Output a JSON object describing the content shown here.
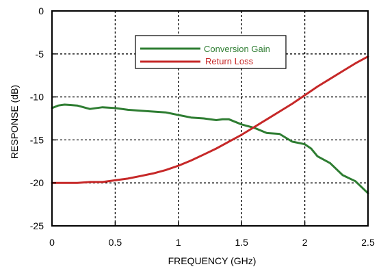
{
  "chart_data": {
    "type": "line",
    "xlabel": "FREQUENCY (GHz)",
    "ylabel": "RESPONSE (dB)",
    "xlim": [
      0,
      2.5
    ],
    "ylim": [
      -25,
      0
    ],
    "x_ticks": [
      0,
      0.5,
      1,
      1.5,
      2,
      2.5
    ],
    "x_tick_labels": [
      "0",
      "0.5",
      "1",
      "1.5",
      "2",
      "2.5"
    ],
    "y_ticks": [
      0,
      -5,
      -10,
      -15,
      -20,
      -25
    ],
    "y_tick_labels": [
      "0",
      "-5",
      "-10",
      "-15",
      "-20",
      "-25"
    ],
    "grid": true,
    "legend_position": "top-center",
    "series": [
      {
        "name": "Conversion Gain",
        "color": "#2e7d32",
        "x": [
          0,
          0.05,
          0.1,
          0.2,
          0.3,
          0.4,
          0.5,
          0.6,
          0.7,
          0.8,
          0.9,
          1.0,
          1.1,
          1.2,
          1.3,
          1.35,
          1.4,
          1.5,
          1.6,
          1.7,
          1.8,
          1.9,
          2.0,
          2.05,
          2.1,
          2.2,
          2.3,
          2.4,
          2.5
        ],
        "y": [
          -11.3,
          -11.0,
          -10.9,
          -11.0,
          -11.4,
          -11.2,
          -11.3,
          -11.5,
          -11.6,
          -11.7,
          -11.8,
          -12.1,
          -12.4,
          -12.5,
          -12.7,
          -12.6,
          -12.6,
          -13.2,
          -13.6,
          -14.2,
          -14.3,
          -15.2,
          -15.5,
          -16.0,
          -16.9,
          -17.7,
          -19.1,
          -19.8,
          -21.2
        ]
      },
      {
        "name": "Return Loss",
        "color": "#c62828",
        "x": [
          0,
          0.1,
          0.2,
          0.3,
          0.4,
          0.5,
          0.6,
          0.7,
          0.8,
          0.9,
          1.0,
          1.1,
          1.2,
          1.3,
          1.4,
          1.5,
          1.6,
          1.7,
          1.8,
          1.9,
          2.0,
          2.1,
          2.2,
          2.3,
          2.4,
          2.5
        ],
        "y": [
          -20.0,
          -20.0,
          -20.0,
          -19.9,
          -19.9,
          -19.7,
          -19.5,
          -19.2,
          -18.9,
          -18.5,
          -18.0,
          -17.4,
          -16.7,
          -16.0,
          -15.2,
          -14.4,
          -13.5,
          -12.6,
          -11.7,
          -10.8,
          -9.8,
          -8.8,
          -7.9,
          -7.0,
          -6.1,
          -5.3
        ]
      }
    ]
  }
}
